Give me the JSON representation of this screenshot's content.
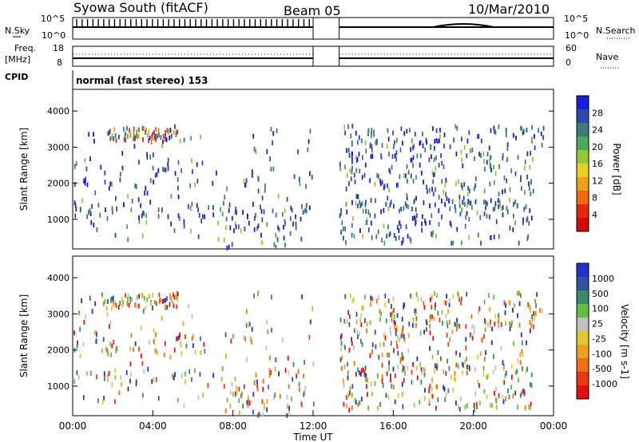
{
  "header": {
    "title": "Syowa South (fitACF)",
    "beam": "Beam 05",
    "date": "10/Mar/2010"
  },
  "top_panels": {
    "nsky_label": "N.Sky",
    "nsearch_label": "N.Search",
    "nsky_ticks": [
      "10^5",
      "10^0"
    ],
    "nsearch_ticks": [
      "10^5",
      "10^0"
    ],
    "freq_label_1": "Freq.",
    "freq_label_2": "[MHz]",
    "freq_ticks": [
      "18",
      "8"
    ],
    "nave_label": "Nave",
    "nave_ticks": [
      "60",
      "0"
    ],
    "cpid_label": "CPID",
    "cpid_text": "normal (fast stereo) 153"
  },
  "chart_data": [
    {
      "type": "heatmap",
      "name": "power",
      "xlabel": "",
      "ylabel": "Slant Range [km]",
      "xlim": [
        0,
        24
      ],
      "ylim": [
        180,
        4600
      ],
      "yticks": [
        "1000",
        "2000",
        "3000",
        "4000"
      ],
      "colorbar": {
        "label": "Power [dB]",
        "ticks": [
          "4",
          "8",
          "12",
          "16",
          "20",
          "24",
          "28"
        ],
        "colors": [
          "#1c1cdc",
          "#2b4aa8",
          "#3f7a7a",
          "#4ea85a",
          "#92c83c",
          "#e8d024",
          "#f0a018",
          "#f06a10",
          "#e02a0a",
          "#d40a0a"
        ]
      },
      "data_gap_hours": [
        12,
        13.3
      ]
    },
    {
      "type": "heatmap",
      "name": "velocity",
      "xlabel": "Time UT",
      "ylabel": "Slant Range [km]",
      "xlim": [
        0,
        24
      ],
      "ylim": [
        180,
        4600
      ],
      "yticks": [
        "1000",
        "2000",
        "3000",
        "4000"
      ],
      "xticks": [
        "00:00",
        "04:00",
        "08:00",
        "12:00",
        "16:00",
        "20:00",
        "00:00"
      ],
      "colorbar": {
        "label": "Velocity [m s-1]",
        "ticks": [
          "1000",
          "500",
          "100",
          "25",
          "-25",
          "-100",
          "-500",
          "-1000"
        ],
        "colors": [
          "#2030c8",
          "#3050a0",
          "#3a8a6a",
          "#60c040",
          "#c0c0c0",
          "#e0c830",
          "#f0a020",
          "#f07018",
          "#e83a10",
          "#e01010"
        ]
      },
      "data_gap_hours": [
        12,
        13.3
      ]
    }
  ]
}
